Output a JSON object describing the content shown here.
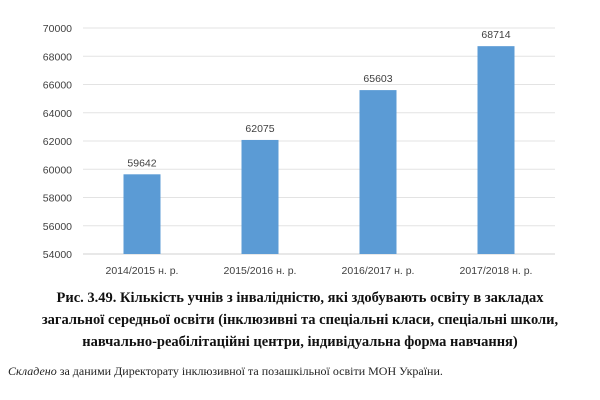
{
  "chart_data": {
    "type": "bar",
    "categories": [
      "2014/2015 н. р.",
      "2015/2016 н. р.",
      "2016/2017 н. р.",
      "2017/2018 н. р."
    ],
    "values": [
      59642,
      62075,
      65603,
      68714
    ],
    "data_labels": [
      "59642",
      "62075",
      "65603",
      "68714"
    ],
    "title": "",
    "xlabel": "",
    "ylabel": "",
    "ylim": [
      54000,
      70000
    ],
    "yticks": [
      54000,
      56000,
      58000,
      60000,
      62000,
      64000,
      66000,
      68000,
      70000
    ],
    "grid": true,
    "legend": "none",
    "bar_color": "#5b9bd5"
  },
  "caption": {
    "line1": "Рис. 3.49. Кількість учнів з інвалідністю, які здобувають освіту в закладах",
    "line2": "загальної середньої освіти (інклюзивні та спеціальні класи, спеціальні школи,",
    "line3": "навчально-реабілітаційні центри, індивідуальна форма навчання)"
  },
  "source": {
    "italic": "Складено",
    "text": " за даними Директорату інклюзивної та позашкільної освіти МОН України."
  }
}
